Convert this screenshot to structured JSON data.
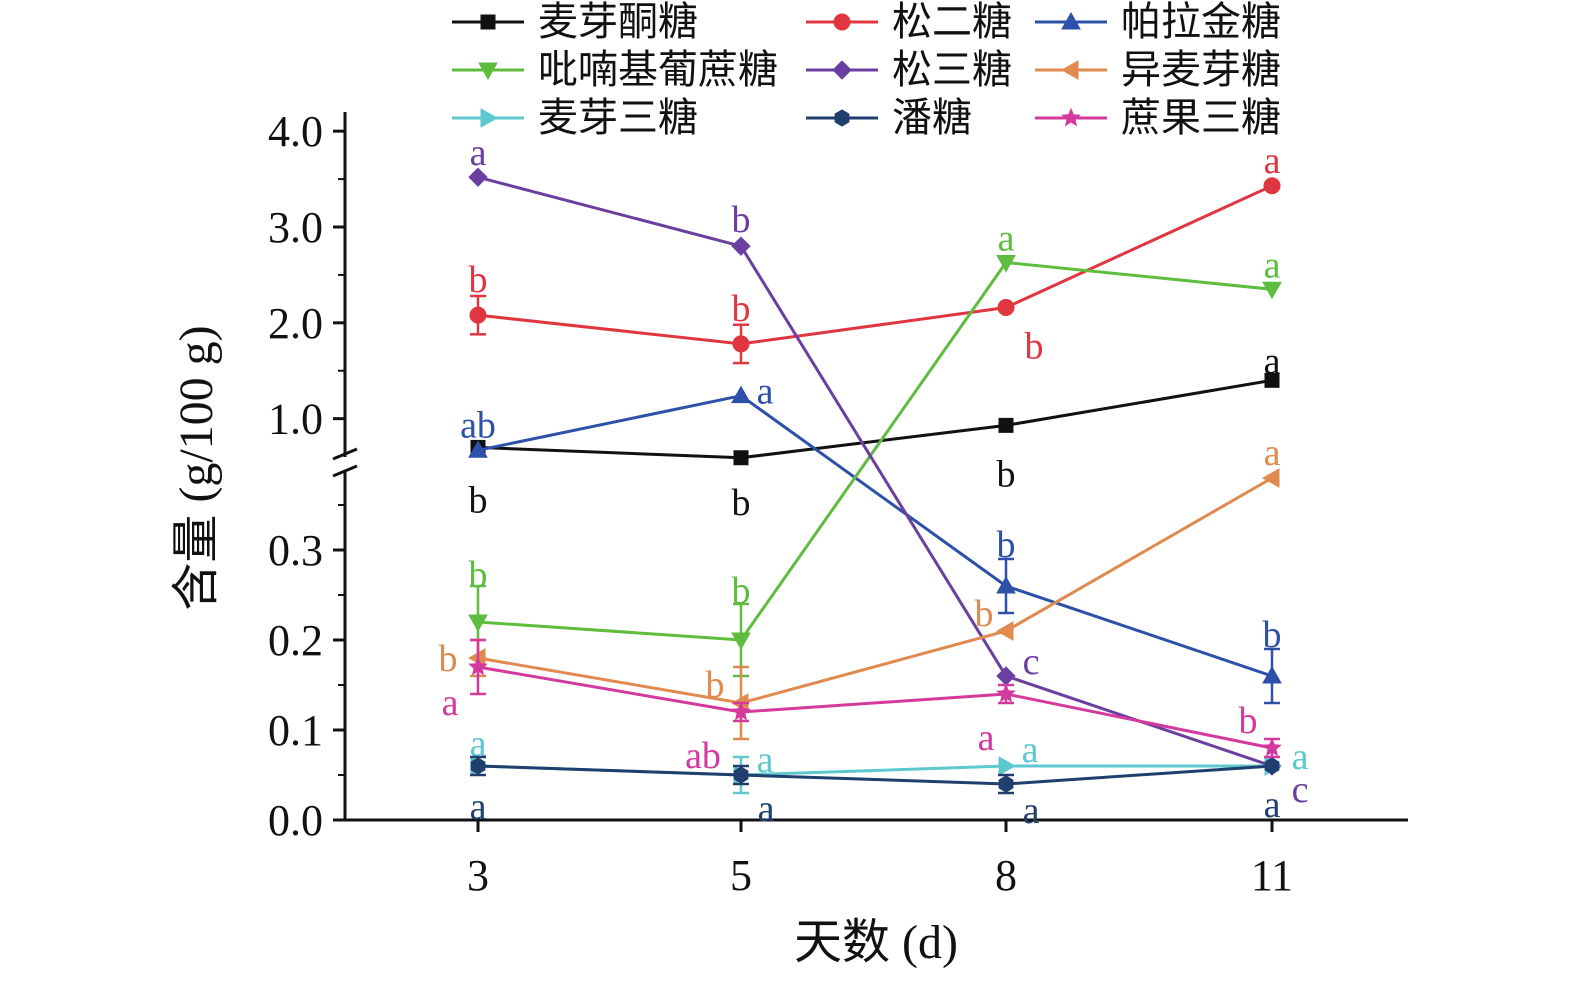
{
  "chart_data": {
    "type": "line",
    "xlabel": "天数 (d)",
    "ylabel": "含量 (g/100 g)",
    "x": [
      3,
      5,
      8,
      11
    ],
    "x_tick_labels": [
      "3",
      "5",
      "8",
      "11"
    ],
    "y_axis_break": {
      "lower_range": [
        0,
        0.4
      ],
      "upper_range": [
        0.6,
        4.2
      ]
    },
    "y_tick_labels_lower": [
      "0.0",
      "0.1",
      "0.2",
      "0.3"
    ],
    "y_tick_labels_upper": [
      "1.0",
      "2.0",
      "3.0",
      "4.0"
    ],
    "y_ticks_lower": [
      0,
      0.1,
      0.2,
      0.3
    ],
    "y_ticks_upper": [
      1.0,
      2.0,
      3.0,
      4.0
    ],
    "grid": false,
    "legend_placement": "top",
    "series": [
      {
        "name": "麦芽酮糖",
        "color": "#111111",
        "marker": "square",
        "values": [
          0.7,
          0.55,
          0.93,
          1.4
        ],
        "errors": [
          0,
          0,
          0,
          0
        ],
        "sig": [
          "b",
          "b",
          "b",
          "a"
        ]
      },
      {
        "name": "松二糖",
        "color": "#e0363f",
        "marker": "circle",
        "values": [
          2.08,
          1.78,
          2.16,
          3.43
        ],
        "errors": [
          0.2,
          0.2,
          0,
          0
        ],
        "sig": [
          "b",
          "b",
          "b",
          "a"
        ]
      },
      {
        "name": "帕拉金糖",
        "color": "#2d51a8",
        "marker": "triangle-up",
        "values": [
          0.67,
          1.24,
          0.26,
          0.16
        ],
        "errors": [
          0,
          0,
          0.03,
          0.03
        ],
        "sig": [
          "ab",
          "a",
          "b",
          "b"
        ]
      },
      {
        "name": "吡喃基葡蔗糖",
        "color": "#5ebd3e",
        "marker": "triangle-down",
        "values": [
          0.22,
          0.2,
          2.63,
          2.35
        ],
        "errors": [
          0.04,
          0.04,
          0,
          0
        ],
        "sig": [
          "b",
          "b",
          "a",
          "a"
        ]
      },
      {
        "name": "松三糖",
        "color": "#6a3fa0",
        "marker": "diamond",
        "values": [
          3.52,
          2.8,
          0.16,
          0.06
        ],
        "errors": [
          0,
          0,
          0,
          0
        ],
        "sig": [
          "a",
          "b",
          "c",
          "c"
        ]
      },
      {
        "name": "异麦芽糖",
        "color": "#e08a4f",
        "marker": "triangle-left",
        "values": [
          0.18,
          0.13,
          0.21,
          0.38
        ],
        "errors": [
          0.02,
          0.04,
          0,
          0
        ],
        "sig": [
          "b",
          "b",
          "b",
          "a"
        ]
      },
      {
        "name": "麦芽三糖",
        "color": "#5ec8cf",
        "marker": "triangle-right",
        "values": [
          0.06,
          0.05,
          0.06,
          0.06
        ],
        "errors": [
          0,
          0.02,
          0,
          0
        ],
        "sig": [
          "a",
          "a",
          "a",
          "a"
        ]
      },
      {
        "name": "潘糖",
        "color": "#1f3f6e",
        "marker": "hexagon",
        "values": [
          0.06,
          0.05,
          0.04,
          0.06
        ],
        "errors": [
          0.01,
          0.01,
          0.01,
          0
        ],
        "sig": [
          "a",
          "a",
          "a",
          "a"
        ]
      },
      {
        "name": "蔗果三糖",
        "color": "#d43a9e",
        "marker": "star",
        "values": [
          0.17,
          0.12,
          0.14,
          0.08
        ],
        "errors": [
          0.03,
          0.01,
          0.01,
          0.01
        ],
        "sig": [
          "a",
          "ab",
          "a",
          "b"
        ]
      }
    ]
  }
}
